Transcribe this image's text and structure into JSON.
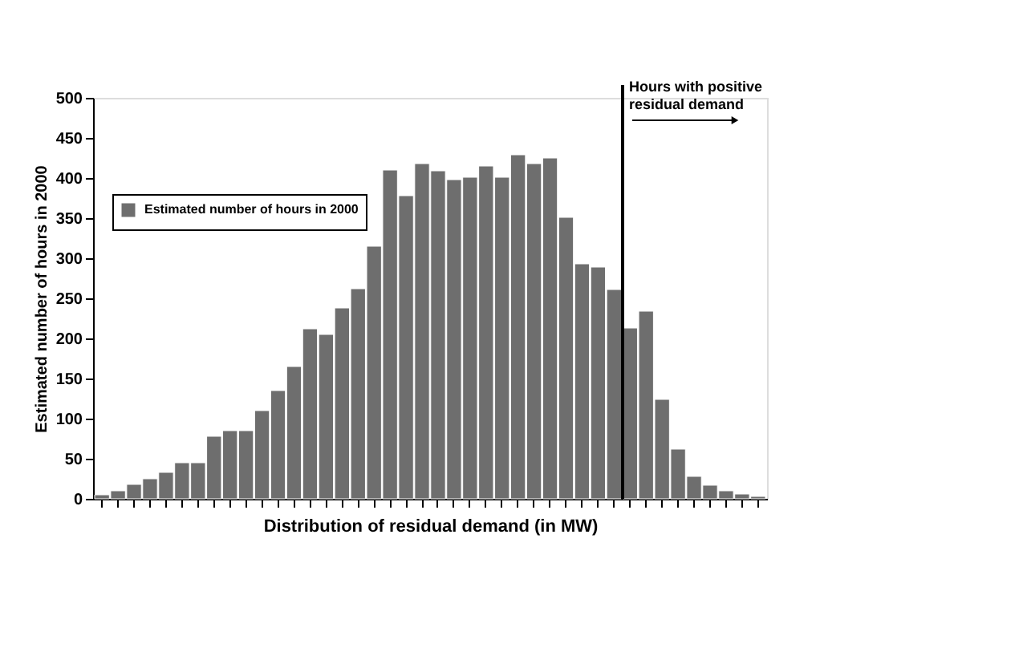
{
  "chart_data": {
    "type": "bar",
    "ylabel": "Estimated number of hours in 2000",
    "xlabel": "Distribution of residual demand (in MW)",
    "categories": [
      null,
      null,
      null,
      null,
      null,
      null,
      null,
      null,
      null,
      null,
      null,
      null,
      null,
      null,
      null,
      null,
      null,
      null,
      null,
      null,
      null,
      null,
      null,
      null,
      null,
      null,
      null,
      null,
      null,
      null,
      null,
      null,
      null,
      null,
      null,
      null,
      null,
      null,
      null,
      null,
      null,
      null
    ],
    "series": [
      {
        "name": "Estimated number of hours in 2000",
        "color": "#6e6e6e",
        "values": [
          5,
          10,
          18,
          25,
          33,
          45,
          45,
          78,
          85,
          85,
          110,
          135,
          165,
          212,
          205,
          238,
          262,
          315,
          410,
          378,
          418,
          409,
          398,
          401,
          415,
          401,
          429,
          418,
          425,
          351,
          293,
          289,
          261,
          213,
          234,
          124,
          62,
          28,
          17,
          10,
          6,
          3
        ]
      }
    ],
    "ylim": [
      0,
      500
    ],
    "yticks": [
      0,
      50,
      100,
      150,
      200,
      250,
      300,
      350,
      400,
      450,
      500
    ],
    "annotations": [
      "Hours with positive residual demand"
    ],
    "legend": "top left",
    "grid": false
  }
}
